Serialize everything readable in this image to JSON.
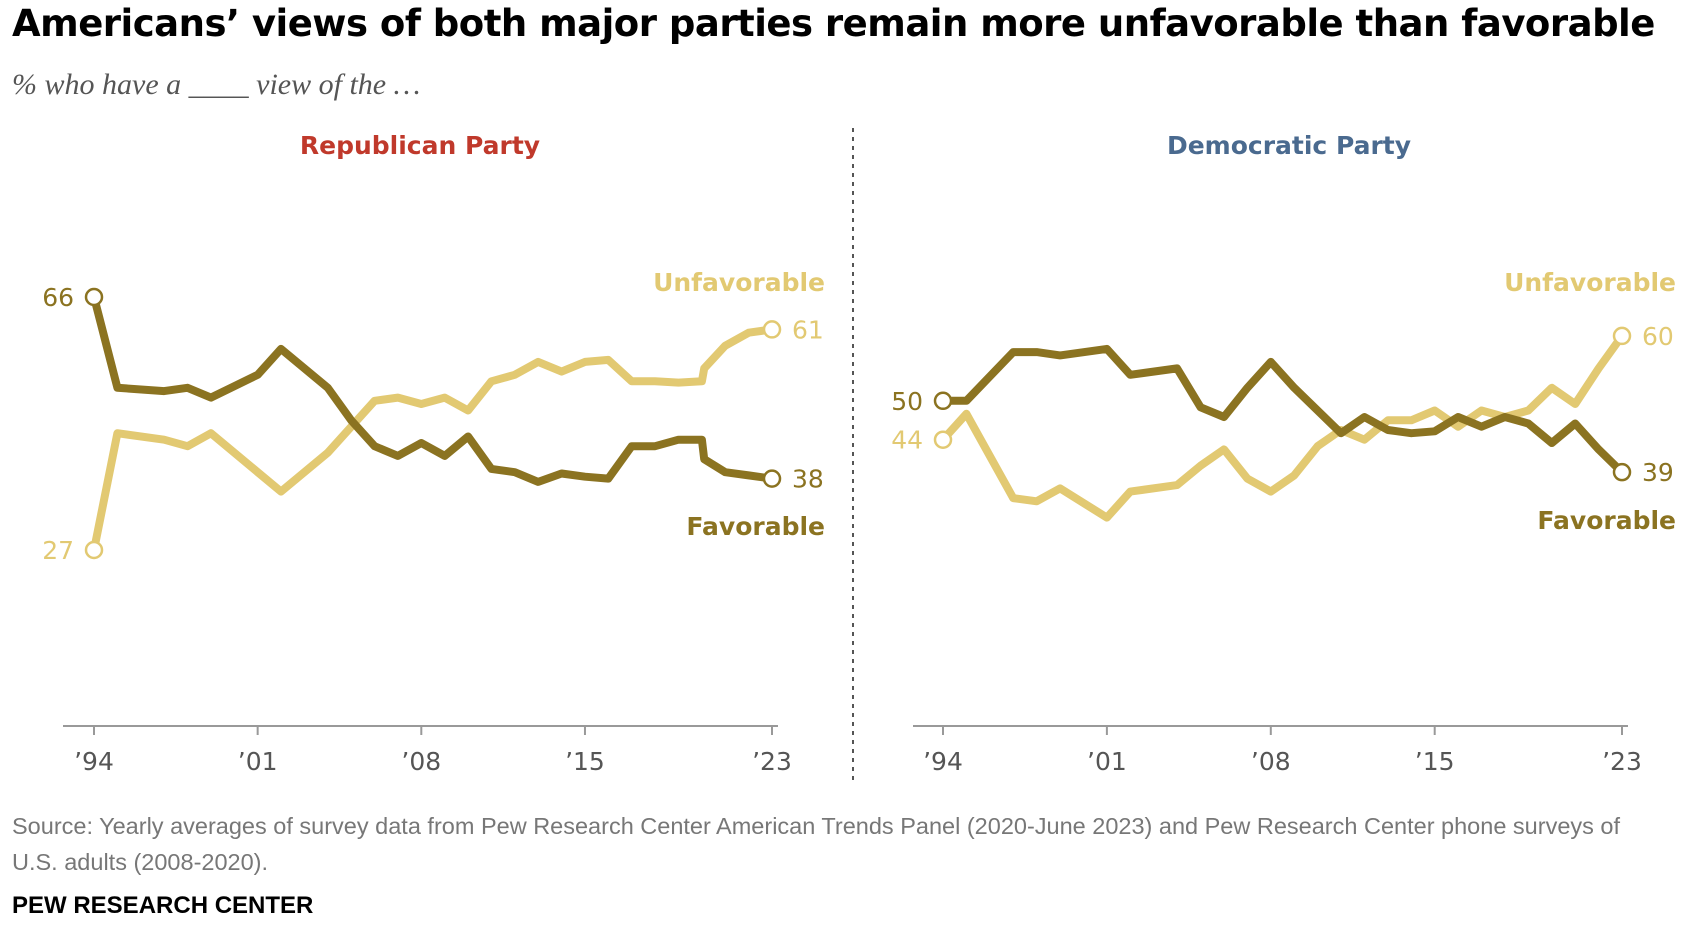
{
  "title": "Americans’ views of both major parties remain more unfavorable than favorable",
  "subtitle": "% who have a ____ view of the …",
  "source": "Source: Yearly averages of survey data from Pew Research Center American Trends Panel (2020-June 2023) and Pew Research Center phone surveys of U.S. adults (2008-2020).",
  "credit": "PEW RESEARCH CENTER",
  "colors": {
    "favorable": "#8B7321",
    "unfavorable": "#E2C972",
    "republican": "#C0392B",
    "democratic": "#4A6A8F",
    "axis": "#999999"
  },
  "chart_data": [
    {
      "type": "line",
      "title": "Republican Party",
      "x_ticks": [
        "’94",
        "’01",
        "’08",
        "’15",
        "’23"
      ],
      "tick_years": [
        1994,
        2001,
        2008,
        2015,
        2023
      ],
      "xlim": [
        1994,
        2023
      ],
      "ylim": [
        20,
        80
      ],
      "series": [
        {
          "name": "Unfavorable",
          "colorKey": "unfavorable",
          "x": [
            1994,
            1995,
            1997,
            1998,
            1999,
            2002,
            2004,
            2006,
            2007,
            2008,
            2009,
            2010,
            2011,
            2012,
            2013,
            2014,
            2015,
            2016,
            2017,
            2018,
            2019,
            2020,
            2020.1,
            2021,
            2022,
            2023
          ],
          "y": [
            27,
            45,
            44,
            43,
            45,
            36,
            42,
            50,
            50.5,
            49.5,
            50.5,
            48.5,
            53,
            54,
            56,
            54.5,
            56,
            56.3,
            53,
            53,
            52.8,
            53,
            55,
            58.5,
            60.5,
            61
          ],
          "end_labels": {
            "start": "27",
            "end": "61"
          }
        },
        {
          "name": "Favorable",
          "colorKey": "favorable",
          "x": [
            1994,
            1995,
            1997,
            1998,
            1999,
            2001,
            2002,
            2004,
            2005,
            2006,
            2007,
            2008,
            2009,
            2010,
            2011,
            2012,
            2013,
            2014,
            2015,
            2016,
            2017,
            2018,
            2019,
            2020,
            2020.1,
            2021,
            2022,
            2023
          ],
          "y": [
            66,
            52,
            51.5,
            52,
            50.5,
            54,
            58,
            52,
            47,
            43,
            41.5,
            43.5,
            41.5,
            44.5,
            39.5,
            39,
            37.5,
            38.8,
            38.3,
            38,
            43,
            43,
            44,
            44,
            41,
            39,
            38.5,
            38
          ],
          "end_labels": {
            "start": "66",
            "end": "38"
          }
        }
      ]
    },
    {
      "type": "line",
      "title": "Democratic Party",
      "x_ticks": [
        "’94",
        "’01",
        "’08",
        "’15",
        "’23"
      ],
      "tick_years": [
        1994,
        2001,
        2008,
        2015,
        2023
      ],
      "xlim": [
        1994,
        2023
      ],
      "ylim": [
        20,
        80
      ],
      "series": [
        {
          "name": "Unfavorable",
          "colorKey": "unfavorable",
          "x": [
            1994,
            1995,
            1997,
            1998,
            1999,
            2001,
            2002,
            2004,
            2005,
            2006,
            2007,
            2008,
            2009,
            2010,
            2011,
            2012,
            2013,
            2014,
            2015,
            2016,
            2017,
            2018,
            2019,
            2020,
            2021,
            2022,
            2023
          ],
          "y": [
            44,
            48,
            35,
            34.5,
            36.5,
            32,
            36,
            37,
            40,
            42.5,
            38,
            36,
            38.5,
            43,
            45.5,
            44,
            47,
            47,
            48.5,
            46,
            48.5,
            47.5,
            48.5,
            52,
            49.5,
            55,
            60
          ],
          "end_labels": {
            "start": "44",
            "end": "60"
          }
        },
        {
          "name": "Favorable",
          "colorKey": "favorable",
          "x": [
            1994,
            1995,
            1997,
            1998,
            1999,
            2001,
            2002,
            2004,
            2005,
            2006,
            2007,
            2008,
            2009,
            2010,
            2011,
            2012,
            2013,
            2014,
            2015,
            2016,
            2017,
            2018,
            2019,
            2020,
            2021,
            2022,
            2023
          ],
          "y": [
            50,
            50,
            57.5,
            57.5,
            57,
            58,
            54,
            55,
            49,
            47.5,
            52,
            56,
            52,
            48.5,
            45,
            47.5,
            45.5,
            45,
            45.3,
            47.5,
            46,
            47.5,
            46.5,
            43.5,
            46.5,
            42.5,
            39
          ],
          "end_labels": {
            "start": "50",
            "end": "39"
          }
        }
      ]
    }
  ]
}
